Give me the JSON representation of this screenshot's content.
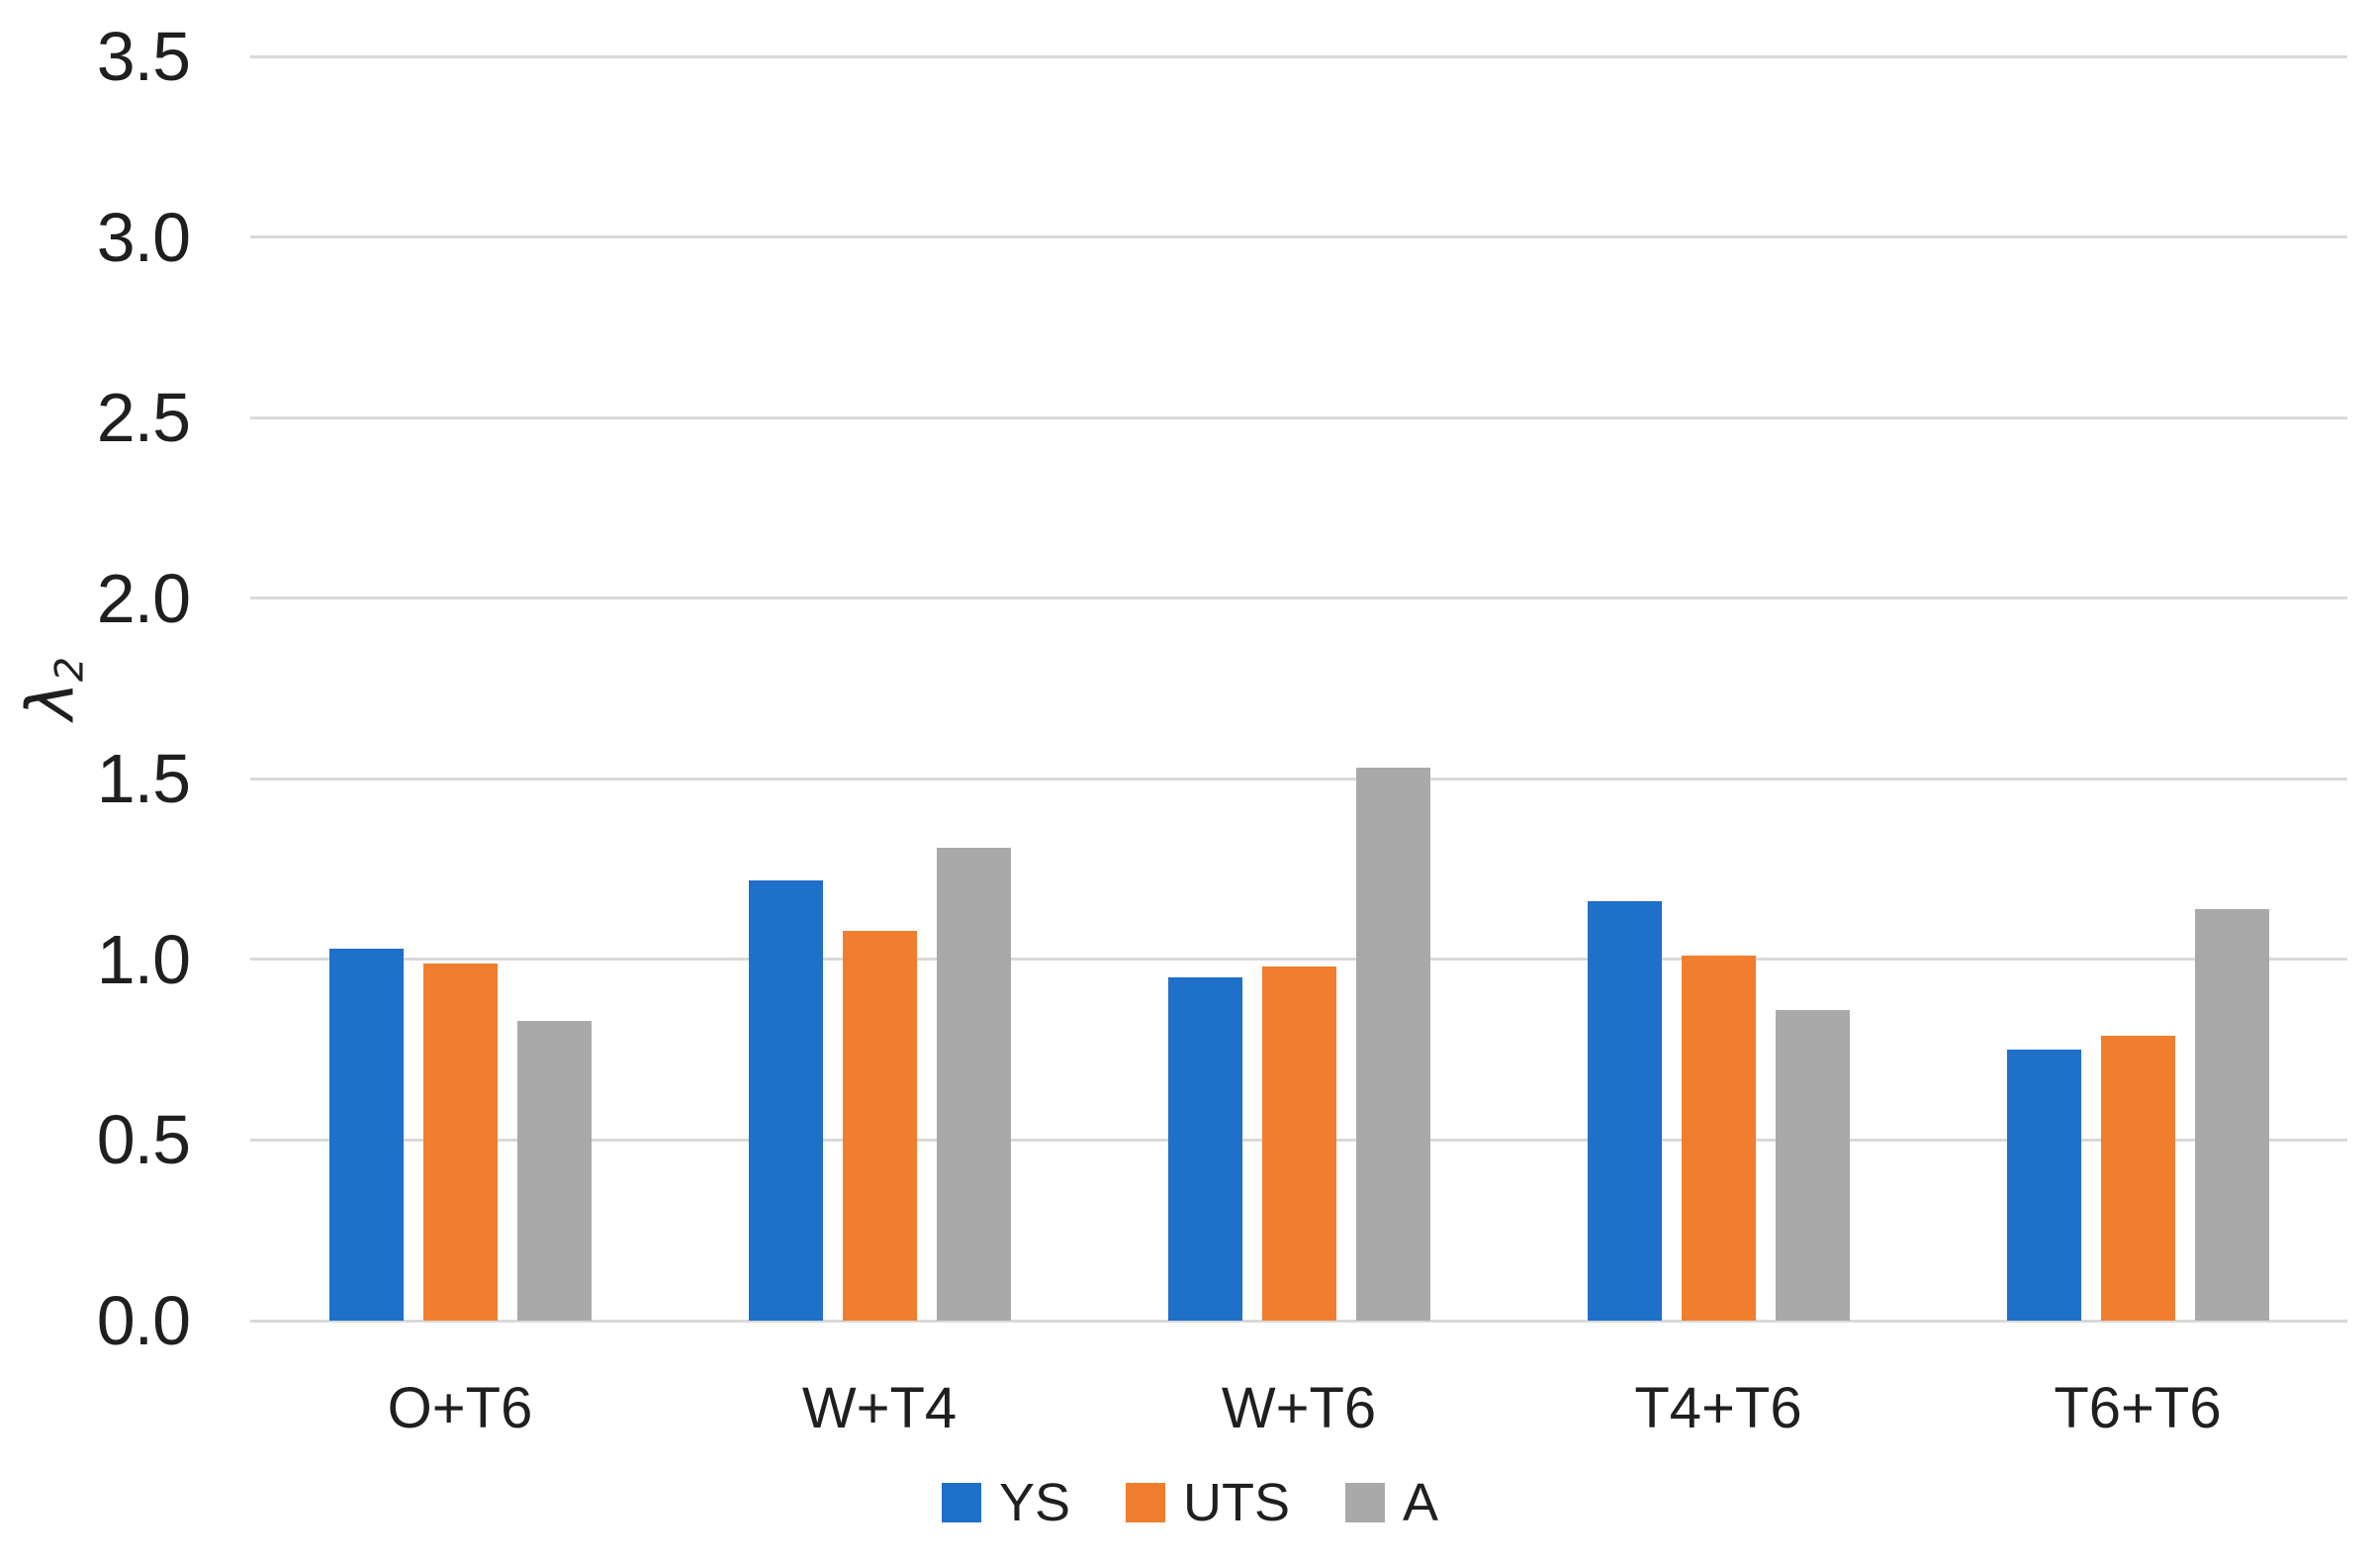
{
  "chart_data": {
    "type": "bar",
    "title": "",
    "categories": [
      "O+T6",
      "W+T4",
      "W+T6",
      "T4+T6",
      "T6+T6"
    ],
    "series": [
      {
        "name": "YS",
        "color": "#1F70C9",
        "values": [
          1.03,
          1.22,
          0.95,
          1.16,
          0.75
        ]
      },
      {
        "name": "UTS",
        "color": "#F07E2E",
        "values": [
          0.99,
          1.08,
          0.98,
          1.01,
          0.79
        ]
      },
      {
        "name": "A",
        "color": "#A9A9A9",
        "values": [
          0.83,
          1.31,
          1.53,
          0.86,
          1.14
        ]
      }
    ],
    "xlabel": "",
    "ylabel": "λ2",
    "ylabel_base": "λ",
    "ylabel_sub": "2",
    "ylim": [
      0,
      3.5
    ],
    "ytick_step": 0.5,
    "ytick_labels": [
      "0.0",
      "0.5",
      "1.0",
      "1.5",
      "2.0",
      "2.5",
      "3.0",
      "3.5"
    ],
    "grid": true,
    "legend_position": "bottom",
    "colors": {
      "gridline": "#D9D9D9",
      "text": "#1F1F1F",
      "background": "#FFFFFF"
    }
  }
}
